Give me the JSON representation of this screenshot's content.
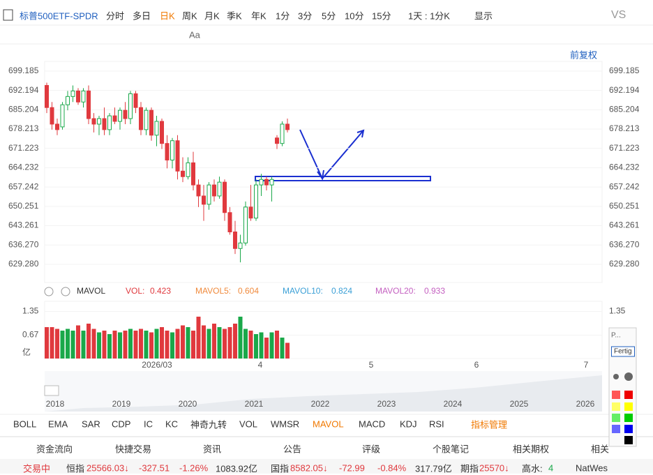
{
  "toolbar": {
    "symbol": "标普500ETF-SPDR",
    "periods": [
      "分时",
      "多日",
      "日K",
      "周K",
      "月K",
      "季K",
      "年K",
      "1分",
      "3分",
      "5分",
      "10分",
      "15分"
    ],
    "range": "1天 : 1分K",
    "display": "显示",
    "vs": "VS",
    "font_tool": "Aa"
  },
  "adjust": "前复权",
  "chart_data": {
    "type": "candlestick",
    "x_labels": [
      "2026/03",
      "4",
      "5",
      "6",
      "7"
    ],
    "candles": [
      [
        694,
        695,
        684,
        686
      ],
      [
        686,
        688,
        678,
        680
      ],
      [
        680,
        682,
        676,
        678
      ],
      [
        679,
        688,
        678,
        687
      ],
      [
        687,
        692,
        685,
        690
      ],
      [
        690,
        694,
        688,
        692
      ],
      [
        692,
        693,
        687,
        688
      ],
      [
        688,
        693,
        686,
        692
      ],
      [
        692,
        694,
        680,
        682
      ],
      [
        682,
        684,
        677,
        680
      ],
      [
        680,
        683,
        676,
        682
      ],
      [
        682,
        686,
        676,
        678
      ],
      [
        678,
        684,
        676,
        683
      ],
      [
        683,
        686,
        680,
        681
      ],
      [
        681,
        686,
        678,
        685
      ],
      [
        685,
        688,
        680,
        682
      ],
      [
        682,
        692,
        680,
        691
      ],
      [
        691,
        692,
        684,
        686
      ],
      [
        686,
        688,
        676,
        678
      ],
      [
        678,
        686,
        676,
        685
      ],
      [
        685,
        686,
        674,
        676
      ],
      [
        676,
        683,
        672,
        681
      ],
      [
        681,
        682,
        671,
        673
      ],
      [
        673,
        676,
        664,
        667
      ],
      [
        667,
        675,
        664,
        674
      ],
      [
        674,
        676,
        660,
        663
      ],
      [
        663,
        668,
        659,
        661
      ],
      [
        661,
        668,
        660,
        666
      ],
      [
        666,
        670,
        656,
        658
      ],
      [
        658,
        660,
        650,
        654
      ],
      [
        654,
        658,
        645,
        651
      ],
      [
        651,
        659,
        649,
        658
      ],
      [
        658,
        660,
        652,
        654
      ],
      [
        654,
        661,
        653,
        659
      ],
      [
        659,
        660,
        645,
        648
      ],
      [
        648,
        650,
        640,
        641
      ],
      [
        641,
        645,
        633,
        635
      ],
      [
        635,
        640,
        630,
        637
      ],
      [
        637,
        652,
        636,
        650
      ],
      [
        650,
        658,
        645,
        646
      ],
      [
        646,
        660,
        645,
        658
      ],
      [
        658,
        662,
        654,
        660
      ],
      [
        660,
        661,
        656,
        658
      ],
      [
        658,
        661,
        652,
        660
      ],
      [
        675,
        676,
        671,
        673
      ],
      [
        673,
        681,
        672,
        680
      ],
      [
        680,
        682,
        677,
        678
      ]
    ],
    "ylim": [
      622.7,
      702.7
    ],
    "yticks": [
      699.185,
      692.194,
      685.204,
      678.213,
      671.223,
      664.232,
      657.242,
      650.251,
      643.261,
      {
        "value": 636.27,
        "label": "636.270"
      },
      {
        "value": 629.28,
        "label": "629.280"
      }
    ],
    "up_color": "#1aa84a",
    "down_color": "#e0393e",
    "volume": {
      "name": "MAVOL",
      "legend": [
        {
          "label": "VOL:",
          "value": 0.423,
          "color": "#e0393e"
        },
        {
          "label": "MAVOL5:",
          "value": 0.604,
          "color": "#f08a3c"
        },
        {
          "label": "MAVOL10:",
          "value": 0.824,
          "color": "#3a9fd6"
        },
        {
          "label": "MAVOL20:",
          "value": 0.933,
          "color": "#c45fc0"
        }
      ],
      "values": [
        0.9,
        0.9,
        0.85,
        0.8,
        0.85,
        0.8,
        0.95,
        0.8,
        1.0,
        0.85,
        0.75,
        0.8,
        0.7,
        0.8,
        0.75,
        0.8,
        0.85,
        0.8,
        0.85,
        0.8,
        0.75,
        0.85,
        0.9,
        0.8,
        0.75,
        0.85,
        0.95,
        0.9,
        0.8,
        1.2,
        0.95,
        0.85,
        1.0,
        0.9,
        0.85,
        0.9,
        1.0,
        1.2,
        0.85,
        0.8,
        0.7,
        0.75,
        0.6,
        0.75,
        0.8,
        0.6,
        0.45
      ],
      "ylim": [
        0,
        1.64
      ],
      "yticks": [
        1.35,
        0.67,
        {
          "value": 0,
          "label": "亿"
        }
      ]
    },
    "navigator_years": [
      "2018",
      "2019",
      "2020",
      "2021",
      "2022",
      "2023",
      "2024",
      "2025",
      "2026"
    ]
  },
  "indicator_tabs": [
    "BOLL",
    "EMA",
    "SAR",
    "CDP",
    "IC",
    "KC",
    "神奇九转",
    "VOL",
    "WMSR",
    "MAVOL",
    "MACD",
    "KDJ",
    "RSI"
  ],
  "manage": "指标管理",
  "palette": {
    "title": "P...",
    "button": "Fertig"
  },
  "bottom_tabs": [
    "资金流向",
    "快捷交易",
    "资讯",
    "公告",
    "评级",
    "个股笔记",
    "相关期权",
    "相关"
  ],
  "ticker": [
    "交易中",
    "恒指",
    "25566.03↓",
    "-327.51",
    "-1.26%",
    "1083.92亿",
    "国指",
    "8582.05↓",
    "-72.99",
    "-0.84%",
    "317.79亿",
    "期指",
    "25570↓",
    "高水:",
    "4",
    "NatWes"
  ]
}
